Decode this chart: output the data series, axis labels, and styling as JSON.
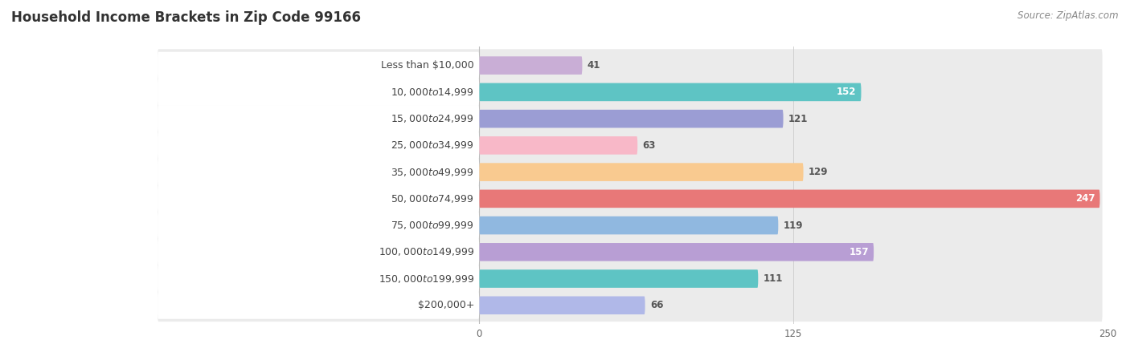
{
  "title": "Household Income Brackets in Zip Code 99166",
  "source": "Source: ZipAtlas.com",
  "categories": [
    "Less than $10,000",
    "$10,000 to $14,999",
    "$15,000 to $24,999",
    "$25,000 to $34,999",
    "$35,000 to $49,999",
    "$50,000 to $74,999",
    "$75,000 to $99,999",
    "$100,000 to $149,999",
    "$150,000 to $199,999",
    "$200,000+"
  ],
  "values": [
    41,
    152,
    121,
    63,
    129,
    247,
    119,
    157,
    111,
    66
  ],
  "colors": [
    "#c9aed6",
    "#5ec4c4",
    "#9b9dd4",
    "#f8b8c8",
    "#f9ca90",
    "#e87878",
    "#90b8e0",
    "#b89ed4",
    "#5ec4c4",
    "#b0b8e8"
  ],
  "xlim": [
    0,
    250
  ],
  "xticks": [
    0,
    125,
    250
  ],
  "row_bg_color": "#eeeeee",
  "row_bg_color2": "#e8e8e8",
  "white_bg": "#ffffff",
  "title_fontsize": 12,
  "label_fontsize": 9,
  "value_fontsize": 8.5,
  "source_fontsize": 8.5,
  "value_white_threshold": 140
}
